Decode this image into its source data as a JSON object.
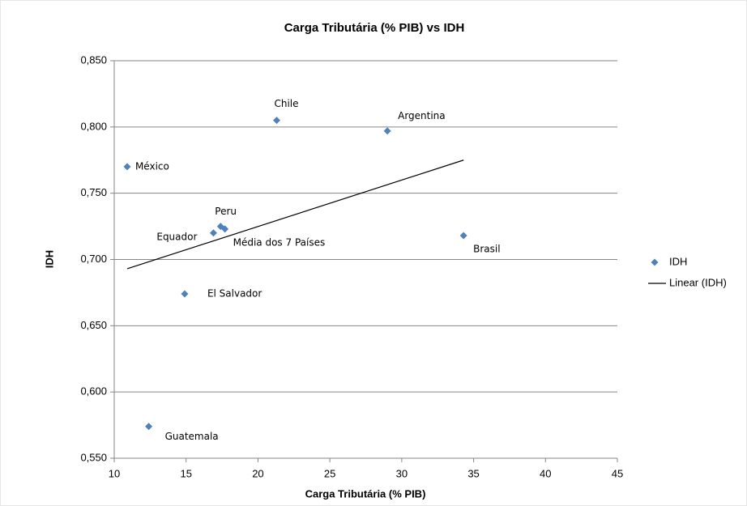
{
  "chart_data": {
    "type": "scatter",
    "title": "Carga Tributária (% PIB) vs IDH",
    "x_label": "Carga Tributária (% PIB)",
    "y_label": "IDH",
    "point_labels": [
      "México",
      "Chile",
      "Argentina",
      "Peru",
      "Média dos 7 Países",
      "Equador",
      "Brasil",
      "El Salvador",
      "Guatemala"
    ],
    "series": [
      {
        "name": "IDH",
        "color": "#4f81bd",
        "x": [
          10.9,
          21.3,
          29.0,
          17.4,
          17.7,
          16.9,
          34.3,
          14.9,
          12.4
        ],
        "values": [
          0.77,
          0.805,
          0.797,
          0.725,
          0.723,
          0.72,
          0.718,
          0.674,
          0.574
        ]
      },
      {
        "name": "Linear (IDH)",
        "color": "#000000",
        "x": [
          10.9,
          34.3
        ],
        "values": [
          0.693,
          0.775
        ]
      }
    ],
    "xlim": [
      10,
      45
    ],
    "xticks": [
      10,
      15,
      20,
      25,
      30,
      35,
      40,
      45
    ],
    "ylim": [
      0.55,
      0.85
    ],
    "yticks": [
      {
        "value": 0.55,
        "label": "0,550"
      },
      {
        "value": 0.6,
        "label": "0,600"
      },
      {
        "value": 0.65,
        "label": "0,650"
      },
      {
        "value": 0.7,
        "label": "0,700"
      },
      {
        "value": 0.75,
        "label": "0,750"
      },
      {
        "value": 0.8,
        "label": "0,800"
      },
      {
        "value": 0.85,
        "label": "0,850"
      }
    ],
    "grid": true,
    "legend": "right"
  }
}
